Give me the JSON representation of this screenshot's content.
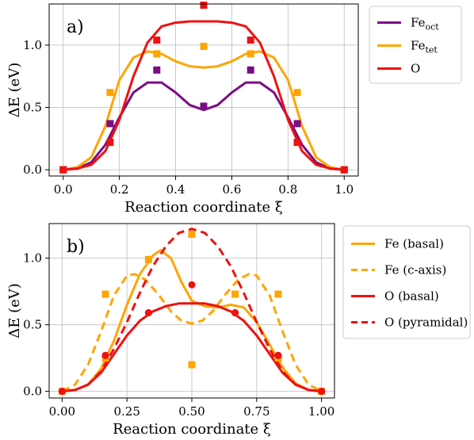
{
  "chart_data": [
    {
      "type": "line",
      "panel_label": "a)",
      "xlabel": "Reaction coordinate ξ",
      "ylabel": "ΔE (eV)",
      "xlim": [
        -0.05,
        1.05
      ],
      "ylim": [
        -0.05,
        1.33
      ],
      "xticks": [
        0.0,
        0.2,
        0.4,
        0.6,
        0.8,
        1.0
      ],
      "xtick_labels": [
        "0.0",
        "0.2",
        "0.4",
        "0.6",
        "0.8",
        "1.0"
      ],
      "yticks": [
        0.0,
        0.5,
        1.0
      ],
      "ytick_labels": [
        "0.0",
        "0.5",
        "1.0"
      ],
      "grid": true,
      "legend_position": "outside-right",
      "series": [
        {
          "name": "Fe",
          "subscript": "oct",
          "color": "#7b0d86",
          "dash": "solid",
          "curve": [
            [
              0.0,
              0.0
            ],
            [
              0.05,
              0.01
            ],
            [
              0.1,
              0.06
            ],
            [
              0.15,
              0.2
            ],
            [
              0.2,
              0.42
            ],
            [
              0.25,
              0.62
            ],
            [
              0.3,
              0.7
            ],
            [
              0.35,
              0.7
            ],
            [
              0.4,
              0.62
            ],
            [
              0.45,
              0.52
            ],
            [
              0.5,
              0.48
            ],
            [
              0.55,
              0.52
            ],
            [
              0.6,
              0.62
            ],
            [
              0.65,
              0.7
            ],
            [
              0.7,
              0.7
            ],
            [
              0.75,
              0.62
            ],
            [
              0.8,
              0.42
            ],
            [
              0.85,
              0.2
            ],
            [
              0.9,
              0.06
            ],
            [
              0.95,
              0.01
            ],
            [
              1.0,
              0.0
            ]
          ],
          "points": [
            [
              0.0,
              0.0
            ],
            [
              0.167,
              0.37
            ],
            [
              0.333,
              0.8
            ],
            [
              0.5,
              0.51
            ],
            [
              0.667,
              0.8
            ],
            [
              0.833,
              0.37
            ],
            [
              1.0,
              0.0
            ]
          ]
        },
        {
          "name": "Fe",
          "subscript": "tet",
          "color": "#ffa500",
          "dash": "solid",
          "curve": [
            [
              0.0,
              0.0
            ],
            [
              0.05,
              0.02
            ],
            [
              0.1,
              0.1
            ],
            [
              0.15,
              0.35
            ],
            [
              0.2,
              0.72
            ],
            [
              0.25,
              0.9
            ],
            [
              0.3,
              0.95
            ],
            [
              0.35,
              0.93
            ],
            [
              0.4,
              0.87
            ],
            [
              0.45,
              0.83
            ],
            [
              0.5,
              0.82
            ],
            [
              0.55,
              0.83
            ],
            [
              0.6,
              0.87
            ],
            [
              0.65,
              0.93
            ],
            [
              0.7,
              0.95
            ],
            [
              0.75,
              0.9
            ],
            [
              0.8,
              0.72
            ],
            [
              0.85,
              0.35
            ],
            [
              0.9,
              0.1
            ],
            [
              0.95,
              0.02
            ],
            [
              1.0,
              0.0
            ]
          ],
          "points": [
            [
              0.0,
              0.0
            ],
            [
              0.167,
              0.62
            ],
            [
              0.333,
              0.93
            ],
            [
              0.5,
              0.99
            ],
            [
              0.667,
              0.93
            ],
            [
              0.833,
              0.62
            ],
            [
              1.0,
              0.0
            ]
          ]
        },
        {
          "name": "O",
          "subscript": "",
          "color": "#ee1111",
          "dash": "solid",
          "curve": [
            [
              0.0,
              0.0
            ],
            [
              0.05,
              0.01
            ],
            [
              0.1,
              0.04
            ],
            [
              0.15,
              0.15
            ],
            [
              0.2,
              0.4
            ],
            [
              0.25,
              0.75
            ],
            [
              0.3,
              1.02
            ],
            [
              0.35,
              1.15
            ],
            [
              0.4,
              1.18
            ],
            [
              0.45,
              1.19
            ],
            [
              0.5,
              1.19
            ],
            [
              0.55,
              1.19
            ],
            [
              0.6,
              1.18
            ],
            [
              0.65,
              1.15
            ],
            [
              0.7,
              1.02
            ],
            [
              0.75,
              0.75
            ],
            [
              0.8,
              0.4
            ],
            [
              0.85,
              0.15
            ],
            [
              0.9,
              0.04
            ],
            [
              0.95,
              0.01
            ],
            [
              1.0,
              0.0
            ]
          ],
          "points": [
            [
              0.0,
              0.0
            ],
            [
              0.167,
              0.22
            ],
            [
              0.333,
              1.04
            ],
            [
              0.5,
              1.32
            ],
            [
              0.667,
              1.04
            ],
            [
              0.833,
              0.22
            ],
            [
              1.0,
              0.0
            ]
          ]
        }
      ]
    },
    {
      "type": "line",
      "panel_label": "b)",
      "xlabel": "Reaction coordinate ξ",
      "ylabel": "ΔE (eV)",
      "xlim": [
        -0.05,
        1.05
      ],
      "ylim": [
        -0.05,
        1.26
      ],
      "xticks": [
        0.0,
        0.25,
        0.5,
        0.75,
        1.0
      ],
      "xtick_labels": [
        "0.00",
        "0.25",
        "0.50",
        "0.75",
        "1.00"
      ],
      "yticks": [
        0.0,
        0.5,
        1.0
      ],
      "ytick_labels": [
        "0.0",
        "0.5",
        "1.0"
      ],
      "grid": true,
      "legend_position": "outside-right",
      "series": [
        {
          "name": "Fe (basal)",
          "subscript": "",
          "color": "#ffa500",
          "dash": "solid",
          "curve": [
            [
              0.0,
              0.0
            ],
            [
              0.05,
              0.01
            ],
            [
              0.1,
              0.05
            ],
            [
              0.15,
              0.17
            ],
            [
              0.2,
              0.38
            ],
            [
              0.25,
              0.65
            ],
            [
              0.3,
              0.88
            ],
            [
              0.35,
              1.02
            ],
            [
              0.38,
              1.06
            ],
            [
              0.42,
              1.0
            ],
            [
              0.46,
              0.82
            ],
            [
              0.5,
              0.68
            ],
            [
              0.55,
              0.64
            ],
            [
              0.6,
              0.63
            ],
            [
              0.65,
              0.65
            ],
            [
              0.7,
              0.63
            ],
            [
              0.75,
              0.52
            ],
            [
              0.8,
              0.35
            ],
            [
              0.85,
              0.18
            ],
            [
              0.9,
              0.06
            ],
            [
              0.95,
              0.01
            ],
            [
              1.0,
              0.0
            ]
          ],
          "points": [
            [
              0.0,
              0.0
            ],
            [
              0.167,
              0.25
            ],
            [
              0.333,
              0.99
            ],
            [
              0.5,
              0.2
            ],
            [
              0.667,
              0.73
            ],
            [
              0.833,
              0.25
            ],
            [
              1.0,
              0.0
            ]
          ]
        },
        {
          "name": "Fe (c-axis)",
          "subscript": "",
          "color": "#ffa500",
          "dash": "dashed",
          "curve": [
            [
              0.0,
              0.0
            ],
            [
              0.05,
              0.05
            ],
            [
              0.1,
              0.2
            ],
            [
              0.15,
              0.45
            ],
            [
              0.2,
              0.72
            ],
            [
              0.25,
              0.87
            ],
            [
              0.28,
              0.88
            ],
            [
              0.32,
              0.84
            ],
            [
              0.37,
              0.73
            ],
            [
              0.42,
              0.6
            ],
            [
              0.46,
              0.53
            ],
            [
              0.5,
              0.51
            ],
            [
              0.54,
              0.53
            ],
            [
              0.58,
              0.6
            ],
            [
              0.63,
              0.73
            ],
            [
              0.68,
              0.84
            ],
            [
              0.72,
              0.88
            ],
            [
              0.75,
              0.87
            ],
            [
              0.8,
              0.72
            ],
            [
              0.85,
              0.45
            ],
            [
              0.9,
              0.2
            ],
            [
              0.95,
              0.05
            ],
            [
              1.0,
              0.0
            ]
          ],
          "points": [
            [
              0.167,
              0.73
            ],
            [
              0.5,
              1.18
            ],
            [
              0.833,
              0.73
            ]
          ]
        },
        {
          "name": "O (basal)",
          "subscript": "",
          "color": "#ee1111",
          "dash": "solid",
          "curve": [
            [
              0.0,
              0.0
            ],
            [
              0.05,
              0.01
            ],
            [
              0.1,
              0.05
            ],
            [
              0.15,
              0.14
            ],
            [
              0.2,
              0.28
            ],
            [
              0.25,
              0.42
            ],
            [
              0.3,
              0.53
            ],
            [
              0.35,
              0.6
            ],
            [
              0.4,
              0.64
            ],
            [
              0.45,
              0.66
            ],
            [
              0.5,
              0.66
            ],
            [
              0.55,
              0.66
            ],
            [
              0.6,
              0.64
            ],
            [
              0.65,
              0.6
            ],
            [
              0.7,
              0.53
            ],
            [
              0.75,
              0.42
            ],
            [
              0.8,
              0.28
            ],
            [
              0.85,
              0.14
            ],
            [
              0.9,
              0.05
            ],
            [
              0.95,
              0.01
            ],
            [
              1.0,
              0.0
            ]
          ],
          "points": [
            [
              0.0,
              0.0
            ],
            [
              0.167,
              0.27
            ],
            [
              0.333,
              0.59
            ],
            [
              0.5,
              0.8
            ],
            [
              0.667,
              0.59
            ],
            [
              0.833,
              0.27
            ],
            [
              1.0,
              0.0
            ]
          ]
        },
        {
          "name": "O (pyramidal)",
          "subscript": "",
          "color": "#ee1111",
          "dash": "dashed",
          "curve": [
            [
              0.0,
              0.0
            ],
            [
              0.05,
              0.01
            ],
            [
              0.1,
              0.05
            ],
            [
              0.15,
              0.15
            ],
            [
              0.2,
              0.32
            ],
            [
              0.25,
              0.52
            ],
            [
              0.3,
              0.74
            ],
            [
              0.35,
              0.94
            ],
            [
              0.4,
              1.09
            ],
            [
              0.45,
              1.19
            ],
            [
              0.5,
              1.22
            ],
            [
              0.55,
              1.19
            ],
            [
              0.6,
              1.09
            ],
            [
              0.65,
              0.94
            ],
            [
              0.7,
              0.74
            ],
            [
              0.75,
              0.52
            ],
            [
              0.8,
              0.32
            ],
            [
              0.85,
              0.15
            ],
            [
              0.9,
              0.05
            ],
            [
              0.95,
              0.01
            ],
            [
              1.0,
              0.0
            ]
          ],
          "points": [
            [
              0.0,
              0.0
            ],
            [
              0.167,
              0.27
            ],
            [
              0.333,
              0.59
            ],
            [
              0.667,
              0.59
            ],
            [
              0.833,
              0.27
            ],
            [
              1.0,
              0.0
            ]
          ]
        }
      ]
    }
  ]
}
